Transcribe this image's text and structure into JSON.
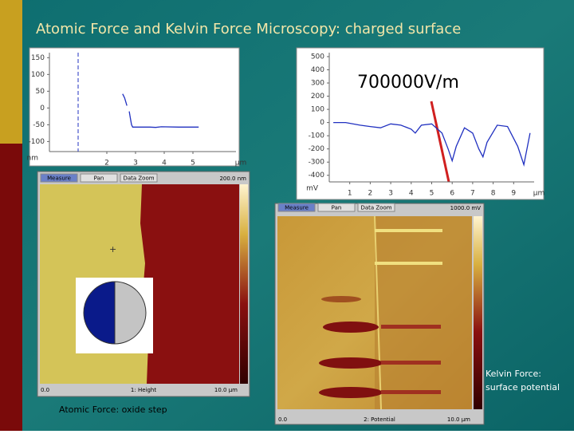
{
  "title": "Atomic Force and Kelvin Force Microscopy: charged surface",
  "height_profile": {
    "type": "line",
    "xlim": [
      0,
      6.5
    ],
    "ylim": [
      -130,
      165
    ],
    "yticks": [
      150,
      100,
      50,
      0,
      -50,
      -100
    ],
    "xticks": [
      2,
      3,
      4,
      5
    ],
    "y_unit": "nm",
    "x_unit": "µm",
    "marker_x": 1,
    "color": "#2030c0",
    "x": [
      2.55,
      2.62,
      2.7,
      null,
      2.78,
      2.82,
      2.86,
      2.9,
      3.5,
      3.7,
      3.9,
      4.5,
      5.2
    ],
    "values": [
      42,
      30,
      7,
      null,
      -10,
      -30,
      -50,
      -57,
      -57,
      -58,
      -56,
      -57,
      -57
    ]
  },
  "potential_profile": {
    "type": "line",
    "xlim": [
      0,
      10
    ],
    "ylim": [
      -450,
      530
    ],
    "yticks": [
      500,
      400,
      300,
      200,
      100,
      0,
      -100,
      -200,
      -300,
      -400
    ],
    "xticks": [
      1,
      2,
      3,
      4,
      5,
      6,
      7,
      8,
      9
    ],
    "y_unit": "mV",
    "x_unit": "µm",
    "color": "#2030c0",
    "x": [
      0.2,
      0.8,
      1.5,
      2.0,
      2.5,
      3.0,
      3.5,
      4.0,
      4.2,
      4.5,
      5.0,
      5.5,
      5.8,
      6.0,
      6.2,
      6.6,
      7.0,
      7.3,
      7.5,
      7.7,
      8.2,
      8.7,
      9.2,
      9.5,
      9.8
    ],
    "values": [
      0,
      0,
      -20,
      -30,
      -40,
      -10,
      -20,
      -50,
      -80,
      -20,
      -10,
      -80,
      -200,
      -290,
      -180,
      -40,
      -80,
      -200,
      -260,
      -150,
      -20,
      -30,
      -180,
      -320,
      -80
    ]
  },
  "annotation": "700000V/m",
  "afm_image": {
    "buttons": [
      "Measure",
      "Pan",
      "Data Zoom"
    ],
    "scale": "200.0 nm",
    "x_start": "0.0",
    "channel": "1: Height",
    "x_end": "10.0 µm"
  },
  "afm_caption": "Atomic Force: oxide step",
  "kfm_image": {
    "buttons": [
      "Measure",
      "Pan",
      "Data Zoom"
    ],
    "scale": "1000.0 mV",
    "x_start": "0.0",
    "channel": "2: Potential",
    "x_end": "10.0 µm"
  },
  "kfm_caption": "Kelvin Force: surface potential"
}
